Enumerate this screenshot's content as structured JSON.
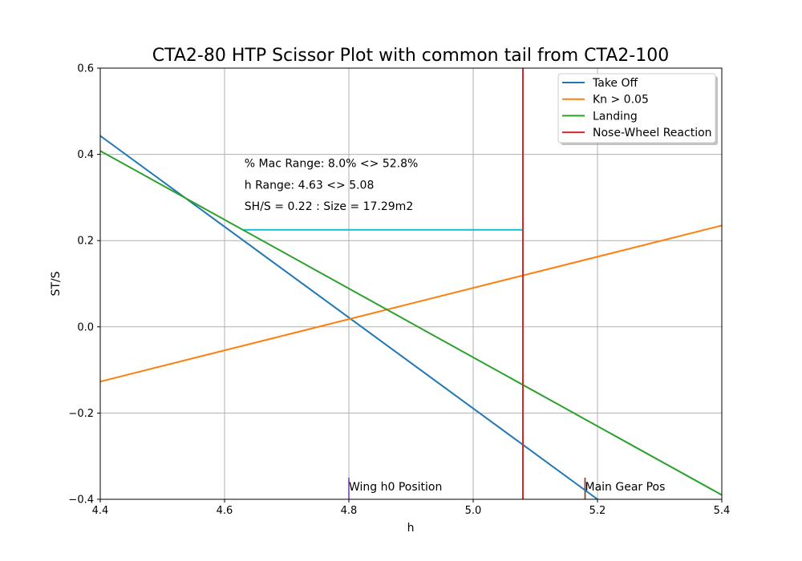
{
  "chart_data": {
    "type": "line",
    "title": "CTA2-80 HTP Scissor Plot with common tail from CTA2-100",
    "xlabel": "h",
    "ylabel": "ST/S",
    "xlim": [
      4.4,
      5.4
    ],
    "ylim": [
      -0.4,
      0.6
    ],
    "grid": true,
    "legend_placement": "top-right",
    "x_ticks": [
      4.4,
      4.6,
      4.8,
      5.0,
      5.2,
      5.4
    ],
    "x_tick_labels": [
      "4.4",
      "4.6",
      "4.8",
      "5.0",
      "5.2",
      "5.4"
    ],
    "y_ticks": [
      -0.4,
      -0.2,
      0.0,
      0.2,
      0.4,
      0.6
    ],
    "y_tick_labels": [
      "−0.4",
      "−0.2",
      "0.0",
      "0.2",
      "0.4",
      "0.6"
    ],
    "series": [
      {
        "name": "Take Off",
        "color": "#1f77b4",
        "x": [
          4.4,
          5.2
        ],
        "y": [
          0.443,
          -0.4
        ]
      },
      {
        "name": "Kn > 0.05",
        "color": "#ff7f0e",
        "x": [
          4.4,
          5.4
        ],
        "y": [
          -0.127,
          0.235
        ]
      },
      {
        "name": "Landing",
        "color": "#2ca02c",
        "x": [
          4.4,
          5.4
        ],
        "y": [
          0.408,
          -0.39
        ]
      },
      {
        "name": "Nose-Wheel Reaction",
        "color": "#d62728",
        "x": [
          5.08,
          5.08
        ],
        "y": [
          -0.4,
          0.6
        ]
      }
    ],
    "extra_lines": [
      {
        "color": "#17becf",
        "x": [
          4.63,
          5.08
        ],
        "y": [
          0.225,
          0.225
        ]
      },
      {
        "color": "#9467bd",
        "x": [
          4.8,
          4.8
        ],
        "y": [
          -0.4,
          -0.35
        ]
      },
      {
        "color": "#8c564b",
        "x": [
          5.18,
          5.18
        ],
        "y": [
          -0.4,
          -0.35
        ]
      }
    ],
    "annotations": [
      {
        "text": "% Mac Range: 8.0% <> 52.8%",
        "x": 4.632,
        "y": 0.38
      },
      {
        "text": "h Range: 4.63 <> 5.08",
        "x": 4.632,
        "y": 0.33
      },
      {
        "text": "SH/S = 0.22 : Size = 17.29m2",
        "x": 4.632,
        "y": 0.28
      },
      {
        "text": "Wing h0 Position",
        "x": 4.8,
        "y": -0.37
      },
      {
        "text": "Main Gear Pos",
        "x": 5.18,
        "y": -0.37
      }
    ]
  }
}
